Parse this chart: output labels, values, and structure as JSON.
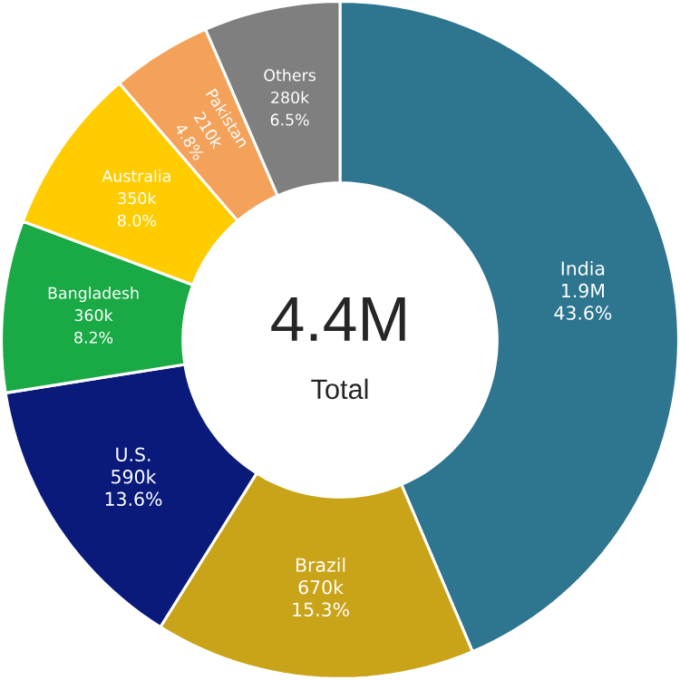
{
  "chart_data": {
    "type": "donut",
    "categories": [
      "India",
      "Brazil",
      "U.S.",
      "Bangladesh",
      "Australia",
      "Pakistan",
      "Others"
    ],
    "values": [
      43.6,
      15.3,
      13.6,
      8.2,
      8.0,
      4.8,
      6.5
    ],
    "colors": [
      "#2e7590",
      "#c9a318",
      "#0a1a7a",
      "#1aaa45",
      "#ffcc00",
      "#f4a15a",
      "#7f7f7f"
    ],
    "value_labels": [
      "1.9M 43.6%",
      "670k 15.3%",
      "590k 13.6%",
      "360k 8.2%",
      "350k 8.0%",
      "210k 4.8%",
      "280k 6.5%"
    ],
    "annotations": [
      "4.4M",
      "Total"
    ]
  }
}
